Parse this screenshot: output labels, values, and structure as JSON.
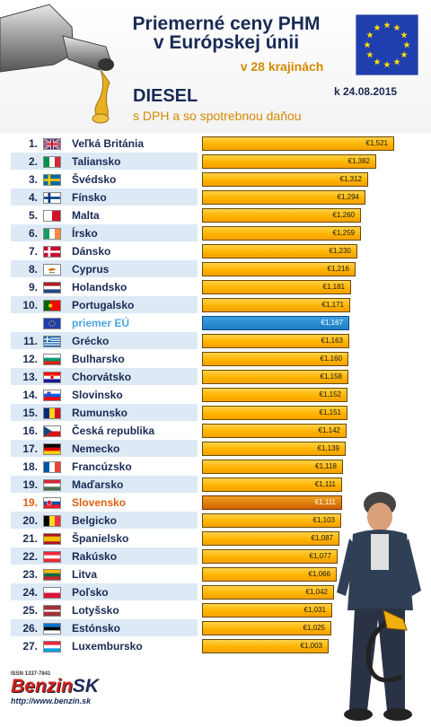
{
  "header": {
    "title_line1": "Priemerné ceny PHM",
    "title_line2": "v Európskej únii",
    "subtitle": "v 28 krajinách",
    "fuel": "DIESEL",
    "date": "k 24.08.2015",
    "tax_note": "s DPH a so spotrebnou daňou"
  },
  "footer": {
    "issn": "ISSN 1337-7841",
    "logo_part1": "Benzin",
    "logo_part2": "SK",
    "url": "http://www.benzin.sk"
  },
  "colors": {
    "bar": "#ffb400",
    "eu_bar": "#1f7cc0",
    "sk_bar": "#d06000",
    "title": "#1a2a55",
    "accent": "#d48a00"
  },
  "chart_data": {
    "type": "bar",
    "orientation": "horizontal",
    "title": "Priemerné ceny PHM v Európskej únii",
    "unit": "€",
    "xlim": [
      0,
      1.6
    ],
    "rows": [
      {
        "rank": "1.",
        "country": "Veľká Británia",
        "value": 1.521,
        "label": "€1,521",
        "flag": "gb"
      },
      {
        "rank": "2.",
        "country": "Taliansko",
        "value": 1.382,
        "label": "€1,382",
        "flag": "it"
      },
      {
        "rank": "3.",
        "country": "Švédsko",
        "value": 1.312,
        "label": "€1,312",
        "flag": "se"
      },
      {
        "rank": "4.",
        "country": "Fínsko",
        "value": 1.294,
        "label": "€1,294",
        "flag": "fi"
      },
      {
        "rank": "5.",
        "country": "Malta",
        "value": 1.26,
        "label": "€1,260",
        "flag": "mt"
      },
      {
        "rank": "6.",
        "country": "Írsko",
        "value": 1.259,
        "label": "€1,259",
        "flag": "ie"
      },
      {
        "rank": "7.",
        "country": "Dánsko",
        "value": 1.23,
        "label": "€1,230",
        "flag": "dk"
      },
      {
        "rank": "8.",
        "country": "Cyprus",
        "value": 1.216,
        "label": "€1,216",
        "flag": "cy"
      },
      {
        "rank": "9.",
        "country": "Holandsko",
        "value": 1.181,
        "label": "€1,181",
        "flag": "nl"
      },
      {
        "rank": "10.",
        "country": "Portugalsko",
        "value": 1.171,
        "label": "€1,171",
        "flag": "pt"
      },
      {
        "rank": "",
        "country": "priemer EÚ",
        "value": 1.167,
        "label": "€1,167",
        "flag": "eu",
        "kind": "eu"
      },
      {
        "rank": "11.",
        "country": "Grécko",
        "value": 1.163,
        "label": "€1,163",
        "flag": "gr"
      },
      {
        "rank": "12.",
        "country": "Bulharsko",
        "value": 1.16,
        "label": "€1,160",
        "flag": "bg"
      },
      {
        "rank": "13.",
        "country": "Chorvátsko",
        "value": 1.158,
        "label": "€1,158",
        "flag": "hr"
      },
      {
        "rank": "14.",
        "country": "Slovinsko",
        "value": 1.152,
        "label": "€1,152",
        "flag": "si"
      },
      {
        "rank": "15.",
        "country": "Rumunsko",
        "value": 1.151,
        "label": "€1,151",
        "flag": "ro"
      },
      {
        "rank": "16.",
        "country": "Česká republika",
        "value": 1.142,
        "label": "€1,142",
        "flag": "cz"
      },
      {
        "rank": "17.",
        "country": "Nemecko",
        "value": 1.139,
        "label": "€1,139",
        "flag": "de"
      },
      {
        "rank": "18.",
        "country": "Francúzsko",
        "value": 1.118,
        "label": "€1,118",
        "flag": "fr"
      },
      {
        "rank": "19.",
        "country": "Maďarsko",
        "value": 1.111,
        "label": "€1,111",
        "flag": "hu"
      },
      {
        "rank": "19.",
        "country": "Slovensko",
        "value": 1.111,
        "label": "€1,111",
        "flag": "sk",
        "kind": "sk"
      },
      {
        "rank": "20.",
        "country": "Belgicko",
        "value": 1.103,
        "label": "€1,103",
        "flag": "be"
      },
      {
        "rank": "21.",
        "country": "Španielsko",
        "value": 1.087,
        "label": "€1,087",
        "flag": "es"
      },
      {
        "rank": "22.",
        "country": "Rakúsko",
        "value": 1.077,
        "label": "€1,077",
        "flag": "at"
      },
      {
        "rank": "23.",
        "country": "Litva",
        "value": 1.066,
        "label": "€1,066",
        "flag": "lt"
      },
      {
        "rank": "24.",
        "country": "Poľsko",
        "value": 1.042,
        "label": "€1,042",
        "flag": "pl"
      },
      {
        "rank": "25.",
        "country": "Lotyšsko",
        "value": 1.031,
        "label": "€1,031",
        "flag": "lv"
      },
      {
        "rank": "26.",
        "country": "Estónsko",
        "value": 1.025,
        "label": "€1,025",
        "flag": "ee"
      },
      {
        "rank": "27.",
        "country": "Luxembursko",
        "value": 1.003,
        "label": "€1,003",
        "flag": "lu"
      }
    ]
  }
}
